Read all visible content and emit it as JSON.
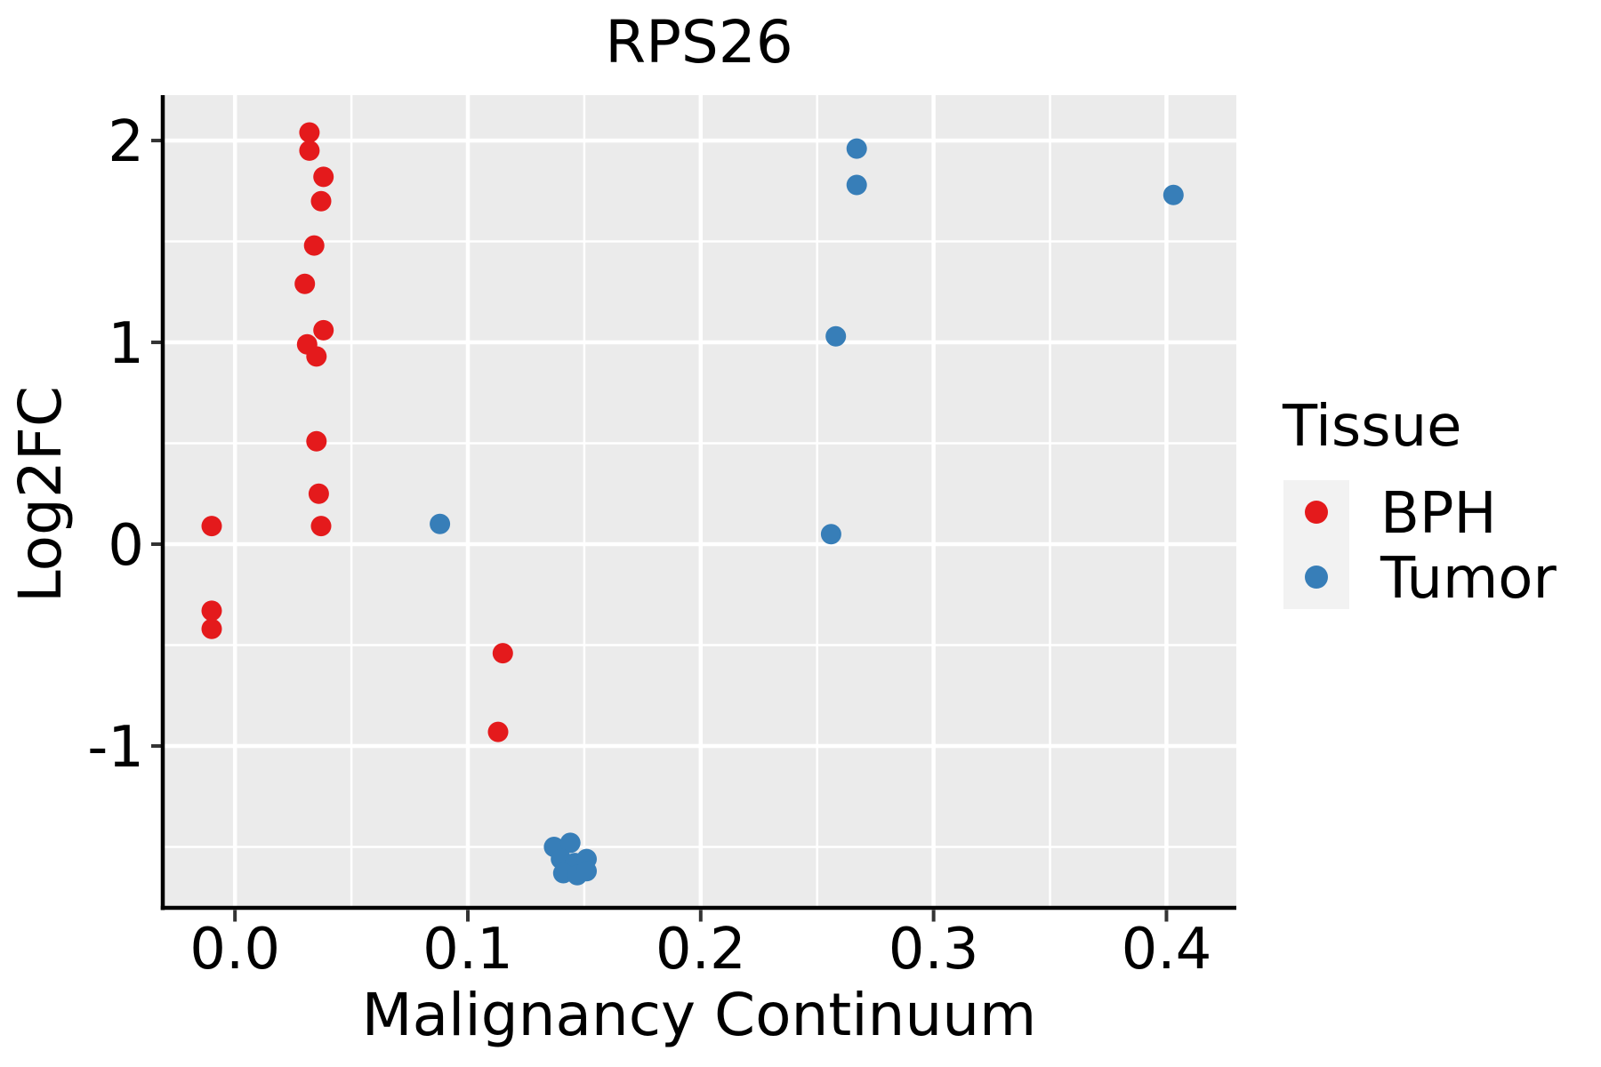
{
  "title": "RPS26",
  "colors": {
    "page_bg": "#ffffff",
    "panel_bg": "#ebebeb",
    "grid": "#ffffff",
    "spine": "#000000",
    "tick": "#333333",
    "text": "#000000",
    "legend_key_bg": "#f2f2f2",
    "bph": "#e41a1c",
    "tumor": "#377eb8"
  },
  "chart_data": {
    "type": "scatter",
    "title": "RPS26",
    "xlabel": "Malignancy Continuum",
    "ylabel": "Log2FC",
    "xlim": [
      -0.031,
      0.43
    ],
    "ylim": [
      -1.802,
      2.225
    ],
    "grid": true,
    "x_ticks": [
      0.0,
      0.1,
      0.2,
      0.3,
      0.4
    ],
    "x_tick_labels": [
      "0.0",
      "0.1",
      "0.2",
      "0.3",
      "0.4"
    ],
    "x_minor_ticks": [
      0.05,
      0.15,
      0.25,
      0.35
    ],
    "y_ticks": [
      2,
      1,
      0,
      -1
    ],
    "y_tick_labels": [
      "2",
      "1",
      "0",
      "-1"
    ],
    "y_minor_ticks": [
      1.5,
      0.5,
      -0.5,
      -1.5
    ],
    "marker_radius_px": 11.5,
    "legend": {
      "title": "Tissue",
      "position": "right",
      "entries": [
        {
          "label": "BPH",
          "color": "#e41a1c"
        },
        {
          "label": "Tumor",
          "color": "#377eb8"
        }
      ]
    },
    "series": [
      {
        "name": "BPH",
        "color": "#e41a1c",
        "points": [
          [
            -0.01,
            0.09
          ],
          [
            -0.01,
            -0.33
          ],
          [
            -0.01,
            -0.42
          ],
          [
            0.032,
            2.04
          ],
          [
            0.032,
            1.95
          ],
          [
            0.038,
            1.82
          ],
          [
            0.037,
            1.7
          ],
          [
            0.034,
            1.48
          ],
          [
            0.03,
            1.29
          ],
          [
            0.038,
            1.06
          ],
          [
            0.031,
            0.99
          ],
          [
            0.035,
            0.93
          ],
          [
            0.035,
            0.51
          ],
          [
            0.036,
            0.25
          ],
          [
            0.037,
            0.09
          ],
          [
            0.115,
            -0.54
          ],
          [
            0.113,
            -0.93
          ]
        ]
      },
      {
        "name": "Tumor",
        "color": "#377eb8",
        "points": [
          [
            0.088,
            0.1
          ],
          [
            0.256,
            0.05
          ],
          [
            0.258,
            1.03
          ],
          [
            0.267,
            1.96
          ],
          [
            0.267,
            1.78
          ],
          [
            0.403,
            1.73
          ],
          [
            0.137,
            -1.5
          ],
          [
            0.144,
            -1.48
          ],
          [
            0.14,
            -1.56
          ],
          [
            0.146,
            -1.58
          ],
          [
            0.151,
            -1.56
          ],
          [
            0.141,
            -1.63
          ],
          [
            0.147,
            -1.64
          ],
          [
            0.151,
            -1.62
          ]
        ]
      }
    ]
  }
}
